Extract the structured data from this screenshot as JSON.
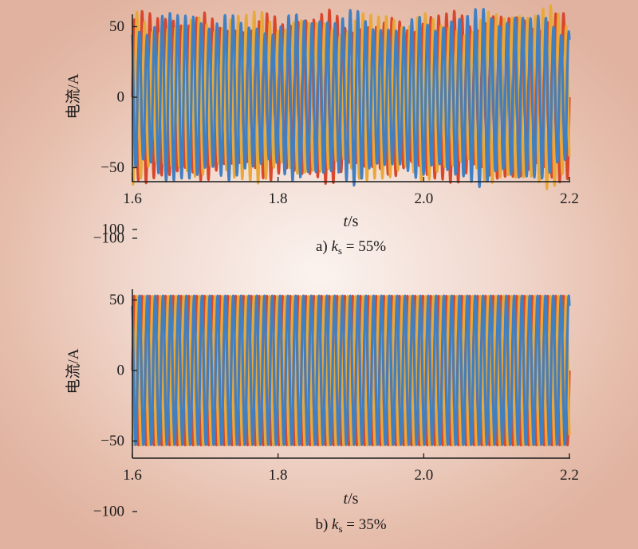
{
  "figure": {
    "panels": [
      {
        "caption_prefix": "a) ",
        "caption_var": "k",
        "caption_sub": "s",
        "caption_rest": " = 55%",
        "ylabel_cn": "电流",
        "ylabel_unit": "/A",
        "xlabel_var": "t",
        "xlabel_unit": "/s"
      },
      {
        "caption_prefix": "b) ",
        "caption_var": "k",
        "caption_sub": "s",
        "caption_rest": " = 35%",
        "ylabel_cn": "电流",
        "ylabel_unit": "/A",
        "xlabel_var": "t",
        "xlabel_unit": "/s"
      }
    ],
    "colors": {
      "phase_a": "#d9472b",
      "phase_b": "#e8a93a",
      "phase_c": "#3f7fc2",
      "axis": "#1a1a1a"
    }
  },
  "chart_data": [
    {
      "type": "line",
      "x_range": [
        1.6,
        2.2
      ],
      "ylim": [
        -120,
        120
      ],
      "xticks": [
        1.6,
        1.8,
        2.0,
        2.2
      ],
      "xtick_labels": [
        "1.6",
        "1.8",
        "2.0",
        "2.2"
      ],
      "yticks": [
        100,
        50,
        0,
        -50,
        -100
      ],
      "ytick_labels": [
        "100",
        "50",
        "0",
        "−50",
        "−100"
      ],
      "grid": false,
      "cycles": 56,
      "amplitude": 53,
      "amplitude_min": 47,
      "amplitude_max": 66,
      "series": [
        {
          "color": "#d9472b",
          "phase_deg": 0
        },
        {
          "color": "#e8a93a",
          "phase_deg": -120
        },
        {
          "color": "#3f7fc2",
          "phase_deg": 120
        }
      ]
    },
    {
      "type": "line",
      "x_range": [
        1.6,
        2.2
      ],
      "ylim": [
        -120,
        120
      ],
      "xticks": [
        1.6,
        1.8,
        2.0,
        2.2
      ],
      "xtick_labels": [
        "1.6",
        "1.8",
        "2.0",
        "2.2"
      ],
      "yticks": [
        100,
        50,
        0,
        -50,
        -100
      ],
      "ytick_labels": [
        "100",
        "50",
        "0",
        "−50",
        "−100"
      ],
      "grid": false,
      "cycles": 56,
      "amplitude": 53,
      "series": [
        {
          "color": "#d9472b",
          "phase_deg": 0
        },
        {
          "color": "#e8a93a",
          "phase_deg": -120
        },
        {
          "color": "#3f7fc2",
          "phase_deg": 120
        }
      ]
    }
  ]
}
